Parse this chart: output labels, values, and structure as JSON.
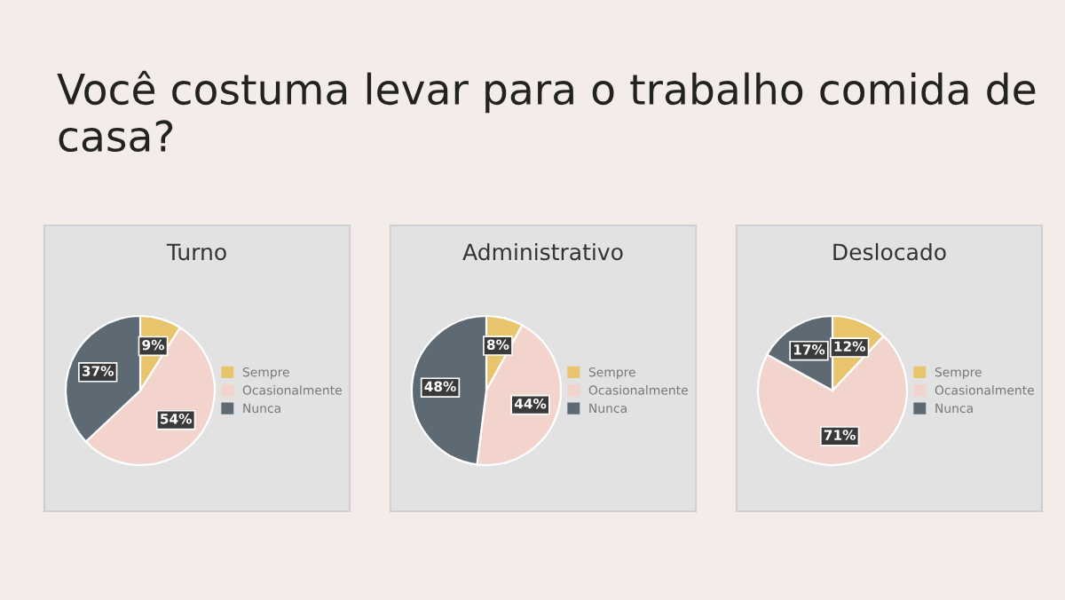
{
  "chart_data": [
    {
      "type": "pie",
      "title": "Turno",
      "annotations": [
        "Você costuma levar para o trabalho comida de casa?"
      ],
      "categories": [
        "Sempre",
        "Ocasionalmente",
        "Nunca"
      ],
      "values": [
        9,
        54,
        37
      ],
      "value_labels": [
        "9%",
        "54%",
        "37%"
      ],
      "colors": [
        "#e8c46c",
        "#f3d4cc",
        "#5d6a74"
      ],
      "legend": "right"
    },
    {
      "type": "pie",
      "title": "Administrativo",
      "categories": [
        "Sempre",
        "Ocasionalmente",
        "Nunca"
      ],
      "values": [
        8,
        44,
        48
      ],
      "value_labels": [
        "8%",
        "44%",
        "48%"
      ],
      "colors": [
        "#e8c46c",
        "#f3d4cc",
        "#5d6a74"
      ],
      "legend": "right"
    },
    {
      "type": "pie",
      "title": "Deslocado",
      "categories": [
        "Sempre",
        "Ocasionalmente",
        "Nunca"
      ],
      "values": [
        12,
        71,
        17
      ],
      "value_labels": [
        "12%",
        "71%",
        "17%"
      ],
      "colors": [
        "#e8c46c",
        "#f3d4cc",
        "#5d6a74"
      ],
      "legend": "right"
    }
  ]
}
